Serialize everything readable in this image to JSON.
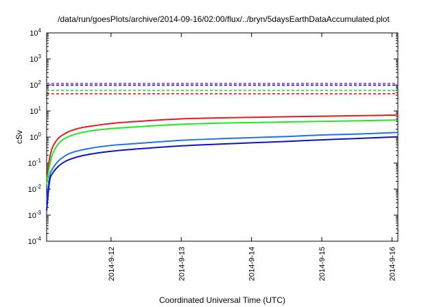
{
  "chart_data": {
    "type": "line",
    "title": "/data/run/goesPlots/archive/2014-09-16/02:00/flux/../bryn/5daysEarthDataAccumulated.plot",
    "xlabel": "Coordinated Universal Time (UTC)",
    "ylabel": "cSv",
    "yscale": "log",
    "ylim": [
      0.0001,
      10000
    ],
    "xlim": [
      "2014-09-11 02:00",
      "2014-09-16 02:00"
    ],
    "x_ticks": [
      "2014-9-12",
      "2014-9-13",
      "2014-9-14",
      "2014-9-15",
      "2014-9-16"
    ],
    "y_ticks": [
      {
        "base": "10",
        "exp": "-4",
        "value": 0.0001
      },
      {
        "base": "10",
        "exp": "-3",
        "value": 0.001
      },
      {
        "base": "10",
        "exp": "-2",
        "value": 0.01
      },
      {
        "base": "10",
        "exp": "-1",
        "value": 0.1
      },
      {
        "base": "10",
        "exp": "0",
        "value": 1
      },
      {
        "base": "10",
        "exp": "1",
        "value": 10
      },
      {
        "base": "10",
        "exp": "2",
        "value": 100
      },
      {
        "base": "10",
        "exp": "3",
        "value": 1000
      },
      {
        "base": "10",
        "exp": "4",
        "value": 10000
      }
    ],
    "grid": false,
    "legend": "none",
    "series": [
      {
        "color": "#e8191c",
        "style": "solid",
        "points": [
          [
            "2014-09-11 02:00",
            0.02
          ],
          [
            "2014-09-11 03:00",
            0.15
          ],
          [
            "2014-09-11 04:00",
            0.4
          ],
          [
            "2014-09-11 06:00",
            0.9
          ],
          [
            "2014-09-11 08:00",
            1.3
          ],
          [
            "2014-09-11 10:00",
            1.7
          ],
          [
            "2014-09-11 14:00",
            2.3
          ],
          [
            "2014-09-11 20:00",
            2.9
          ],
          [
            "2014-09-12 02:00",
            3.5
          ],
          [
            "2014-09-12 12:00",
            4.2
          ],
          [
            "2014-09-13 00:00",
            5.0
          ],
          [
            "2014-09-13 12:00",
            5.4
          ],
          [
            "2014-09-14 00:00",
            5.7
          ],
          [
            "2014-09-14 12:00",
            6.0
          ],
          [
            "2014-09-15 00:00",
            6.3
          ],
          [
            "2014-09-15 12:00",
            6.6
          ],
          [
            "2014-09-16 02:00",
            7.0
          ]
        ]
      },
      {
        "color": "#1eeb1e",
        "style": "solid",
        "points": [
          [
            "2014-09-11 02:00",
            0.015
          ],
          [
            "2014-09-11 03:00",
            0.08
          ],
          [
            "2014-09-11 04:00",
            0.22
          ],
          [
            "2014-09-11 06:00",
            0.55
          ],
          [
            "2014-09-11 08:00",
            0.85
          ],
          [
            "2014-09-11 10:00",
            1.1
          ],
          [
            "2014-09-11 14:00",
            1.5
          ],
          [
            "2014-09-11 20:00",
            1.9
          ],
          [
            "2014-09-12 02:00",
            2.2
          ],
          [
            "2014-09-12 12:00",
            2.6
          ],
          [
            "2014-09-13 00:00",
            3.1
          ],
          [
            "2014-09-13 12:00",
            3.4
          ],
          [
            "2014-09-14 00:00",
            3.6
          ],
          [
            "2014-09-14 12:00",
            3.8
          ],
          [
            "2014-09-15 00:00",
            4.0
          ],
          [
            "2014-09-15 12:00",
            4.2
          ],
          [
            "2014-09-16 02:00",
            4.5
          ]
        ]
      },
      {
        "color": "#1a73e8",
        "style": "solid",
        "points": [
          [
            "2014-09-11 02:00",
            0.003
          ],
          [
            "2014-09-11 03:00",
            0.03
          ],
          [
            "2014-09-11 04:00",
            0.06
          ],
          [
            "2014-09-11 06:00",
            0.12
          ],
          [
            "2014-09-11 08:00",
            0.18
          ],
          [
            "2014-09-11 10:00",
            0.24
          ],
          [
            "2014-09-11 14:00",
            0.32
          ],
          [
            "2014-09-11 20:00",
            0.42
          ],
          [
            "2014-09-12 02:00",
            0.5
          ],
          [
            "2014-09-12 12:00",
            0.6
          ],
          [
            "2014-09-13 00:00",
            0.75
          ],
          [
            "2014-09-13 12:00",
            0.85
          ],
          [
            "2014-09-14 00:00",
            0.95
          ],
          [
            "2014-09-14 12:00",
            1.05
          ],
          [
            "2014-09-15 00:00",
            1.2
          ],
          [
            "2014-09-15 12:00",
            1.3
          ],
          [
            "2014-09-16 02:00",
            1.5
          ]
        ]
      },
      {
        "color": "#1010c8",
        "style": "solid",
        "points": [
          [
            "2014-09-11 02:00",
            0.0015
          ],
          [
            "2014-09-11 03:00",
            0.02
          ],
          [
            "2014-09-11 04:00",
            0.04
          ],
          [
            "2014-09-11 06:00",
            0.075
          ],
          [
            "2014-09-11 08:00",
            0.11
          ],
          [
            "2014-09-11 10:00",
            0.14
          ],
          [
            "2014-09-11 14:00",
            0.19
          ],
          [
            "2014-09-11 20:00",
            0.25
          ],
          [
            "2014-09-12 02:00",
            0.3
          ],
          [
            "2014-09-12 12:00",
            0.37
          ],
          [
            "2014-09-13 00:00",
            0.46
          ],
          [
            "2014-09-13 12:00",
            0.53
          ],
          [
            "2014-09-14 00:00",
            0.6
          ],
          [
            "2014-09-14 12:00",
            0.68
          ],
          [
            "2014-09-15 00:00",
            0.78
          ],
          [
            "2014-09-15 12:00",
            0.88
          ],
          [
            "2014-09-16 02:00",
            1.02
          ]
        ]
      }
    ],
    "reference_lines": [
      {
        "value": 115,
        "color": "#9b30c8",
        "style": "dashed"
      },
      {
        "value": 98,
        "color": "#1010c8",
        "style": "dashed"
      },
      {
        "value": 62,
        "color": "#1eeb1e",
        "style": "dashed"
      },
      {
        "value": 46,
        "color": "#e8191c",
        "style": "dashed"
      }
    ]
  }
}
